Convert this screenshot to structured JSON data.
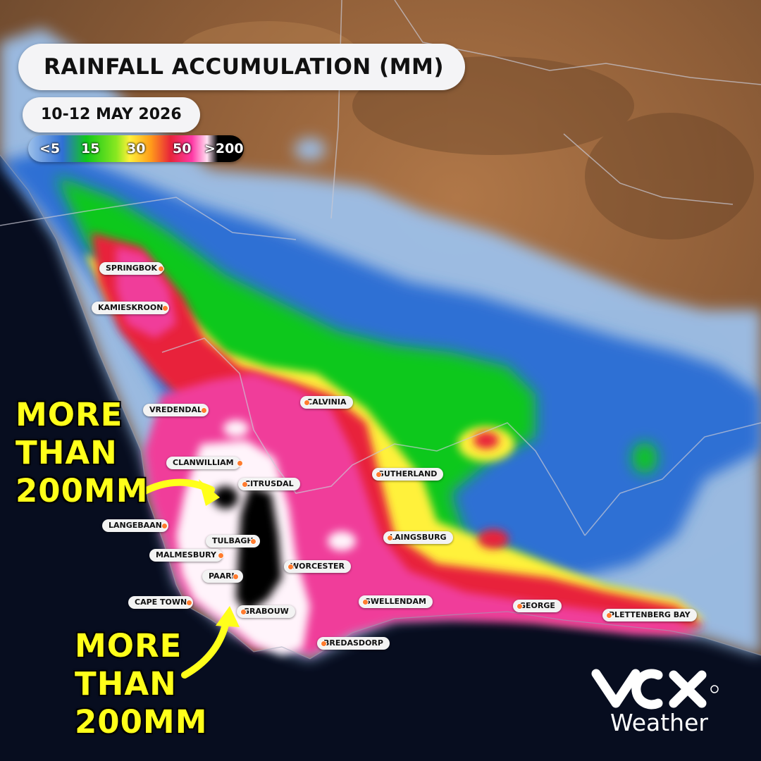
{
  "title": "RAINFALL ACCUMULATION (MM)",
  "date_range": "10-12 MAY 2026",
  "legend": {
    "ticks": [
      "<5",
      "15",
      "30",
      "50",
      ">200"
    ]
  },
  "towns": [
    {
      "name": "SPRINGBOK"
    },
    {
      "name": "KAMIESKROON"
    },
    {
      "name": "VREDENDAL"
    },
    {
      "name": "CALVINIA"
    },
    {
      "name": "CLANWILLIAM"
    },
    {
      "name": "CITRUSDAL"
    },
    {
      "name": "SUTHERLAND"
    },
    {
      "name": "LANGEBAAN"
    },
    {
      "name": "TULBAGH"
    },
    {
      "name": "LAINGSBURG"
    },
    {
      "name": "MALMESBURY"
    },
    {
      "name": "WORCESTER"
    },
    {
      "name": "PAARL"
    },
    {
      "name": "CAPE TOWN"
    },
    {
      "name": "SWELLENDAM"
    },
    {
      "name": "GEORGE"
    },
    {
      "name": "GRABOUW"
    },
    {
      "name": "PLETTENBERG BAY"
    },
    {
      "name": "BREDASDORP"
    }
  ],
  "callouts": [
    {
      "lines": [
        "MORE",
        "THAN",
        "200MM"
      ]
    },
    {
      "lines": [
        "MORE",
        "THAN",
        "200MM"
      ]
    }
  ],
  "brand": {
    "logo_icon": "vox-logo-icon",
    "word": "Weather"
  },
  "colors": {
    "ocean": "#070d1f",
    "land": "#8a5a36",
    "light_rain": "#9cc0ea",
    "blue": "#2f6fd4",
    "green": "#10c81a",
    "yellow": "#fff13a",
    "orange": "#ff9a1a",
    "red": "#c81d2a",
    "pink": "#f03c9a",
    "white": "#fff4fb",
    "black": "#000000",
    "callout": "#ffff1a"
  }
}
